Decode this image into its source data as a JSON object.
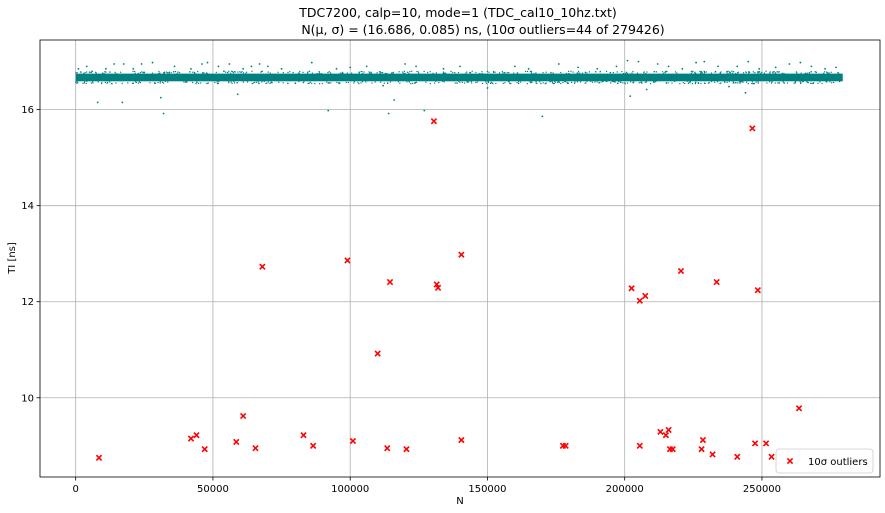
{
  "chart_data": {
    "type": "scatter",
    "title": "TDC7200, calp=10, mode=1 (TDC_cal10_10hz.txt)",
    "subtitle": "N(μ, σ) = (16.686, 0.085) ns, (10σ outliers=44 of 279426)",
    "xlabel": "N",
    "ylabel": "TI [ns]",
    "xlim": [
      -13000,
      293000
    ],
    "ylim": [
      8.35,
      17.45
    ],
    "xticks": [
      0,
      50000,
      100000,
      150000,
      200000,
      250000
    ],
    "xtick_labels": [
      "0",
      "50000",
      "100000",
      "150000",
      "200000",
      "250000"
    ],
    "yticks": [
      10,
      12,
      14,
      16
    ],
    "ytick_labels": [
      "10",
      "12",
      "14",
      "16"
    ],
    "grid": true,
    "legend_position": "lower-right",
    "colors": {
      "samples": "#008080",
      "outliers": "#ff0000"
    },
    "main_band": {
      "x_range": [
        0,
        279426
      ],
      "y_range": [
        16.59,
        16.75
      ]
    },
    "samples_sparse": [
      [
        1000,
        16.85
      ],
      [
        4000,
        16.9
      ],
      [
        6000,
        16.8
      ],
      [
        8000,
        16.15
      ],
      [
        11000,
        16.85
      ],
      [
        14000,
        16.95
      ],
      [
        17000,
        16.15
      ],
      [
        17500,
        16.95
      ],
      [
        21000,
        16.85
      ],
      [
        24000,
        16.95
      ],
      [
        28000,
        16.98
      ],
      [
        31000,
        16.25
      ],
      [
        32000,
        15.92
      ],
      [
        36000,
        16.9
      ],
      [
        42000,
        16.85
      ],
      [
        46000,
        16.95
      ],
      [
        48000,
        16.98
      ],
      [
        52000,
        16.9
      ],
      [
        54000,
        16.8
      ],
      [
        56000,
        16.95
      ],
      [
        59000,
        16.32
      ],
      [
        61000,
        16.85
      ],
      [
        64000,
        16.9
      ],
      [
        67000,
        16.95
      ],
      [
        70000,
        16.9
      ],
      [
        75000,
        16.85
      ],
      [
        80000,
        16.55
      ],
      [
        86000,
        16.98
      ],
      [
        92000,
        15.98
      ],
      [
        95000,
        16.85
      ],
      [
        100000,
        16.88
      ],
      [
        106000,
        16.9
      ],
      [
        112000,
        16.5
      ],
      [
        114000,
        15.92
      ],
      [
        116000,
        16.2
      ],
      [
        120000,
        16.95
      ],
      [
        124000,
        16.9
      ],
      [
        127000,
        15.98
      ],
      [
        134000,
        16.85
      ],
      [
        140000,
        16.9
      ],
      [
        150000,
        16.45
      ],
      [
        160000,
        16.9
      ],
      [
        165000,
        16.85
      ],
      [
        170000,
        15.86
      ],
      [
        176000,
        16.95
      ],
      [
        183000,
        16.88
      ],
      [
        190000,
        16.85
      ],
      [
        197000,
        16.9
      ],
      [
        201000,
        17.02
      ],
      [
        202000,
        16.28
      ],
      [
        205000,
        17.0
      ],
      [
        208000,
        16.42
      ],
      [
        212000,
        16.95
      ],
      [
        216000,
        16.9
      ],
      [
        221000,
        16.85
      ],
      [
        226000,
        16.98
      ],
      [
        229000,
        17.0
      ],
      [
        234000,
        16.9
      ],
      [
        238000,
        16.48
      ],
      [
        241000,
        16.9
      ],
      [
        244000,
        16.35
      ],
      [
        245000,
        17.0
      ],
      [
        249000,
        16.85
      ],
      [
        255000,
        16.88
      ],
      [
        260000,
        16.95
      ],
      [
        264000,
        16.98
      ],
      [
        268000,
        16.9
      ],
      [
        273000,
        16.85
      ],
      [
        277000,
        16.88
      ]
    ],
    "outliers": {
      "label": "10σ outliers",
      "points": [
        [
          8500,
          8.75
        ],
        [
          42000,
          9.15
        ],
        [
          44000,
          9.22
        ],
        [
          47000,
          8.93
        ],
        [
          58500,
          9.08
        ],
        [
          61000,
          9.62
        ],
        [
          65500,
          8.95
        ],
        [
          68000,
          12.73
        ],
        [
          83000,
          9.22
        ],
        [
          86500,
          9.0
        ],
        [
          99000,
          12.86
        ],
        [
          101000,
          9.1
        ],
        [
          110000,
          10.92
        ],
        [
          113500,
          8.95
        ],
        [
          114500,
          12.41
        ],
        [
          120500,
          8.93
        ],
        [
          130500,
          15.76
        ],
        [
          131500,
          12.36
        ],
        [
          132000,
          12.29
        ],
        [
          140500,
          12.98
        ],
        [
          140500,
          9.12
        ],
        [
          177500,
          9.0
        ],
        [
          178500,
          9.0
        ],
        [
          202500,
          12.28
        ],
        [
          205500,
          9.0
        ],
        [
          205500,
          12.02
        ],
        [
          207500,
          12.12
        ],
        [
          213000,
          9.29
        ],
        [
          215000,
          9.22
        ],
        [
          216000,
          9.33
        ],
        [
          216500,
          8.93
        ],
        [
          217500,
          8.93
        ],
        [
          220500,
          12.64
        ],
        [
          228000,
          8.93
        ],
        [
          228500,
          9.12
        ],
        [
          232000,
          8.82
        ],
        [
          233500,
          12.41
        ],
        [
          241000,
          8.77
        ],
        [
          246500,
          15.61
        ],
        [
          247500,
          9.05
        ],
        [
          248500,
          12.24
        ],
        [
          251500,
          9.05
        ],
        [
          253500,
          8.77
        ],
        [
          263500,
          9.78
        ]
      ]
    }
  }
}
